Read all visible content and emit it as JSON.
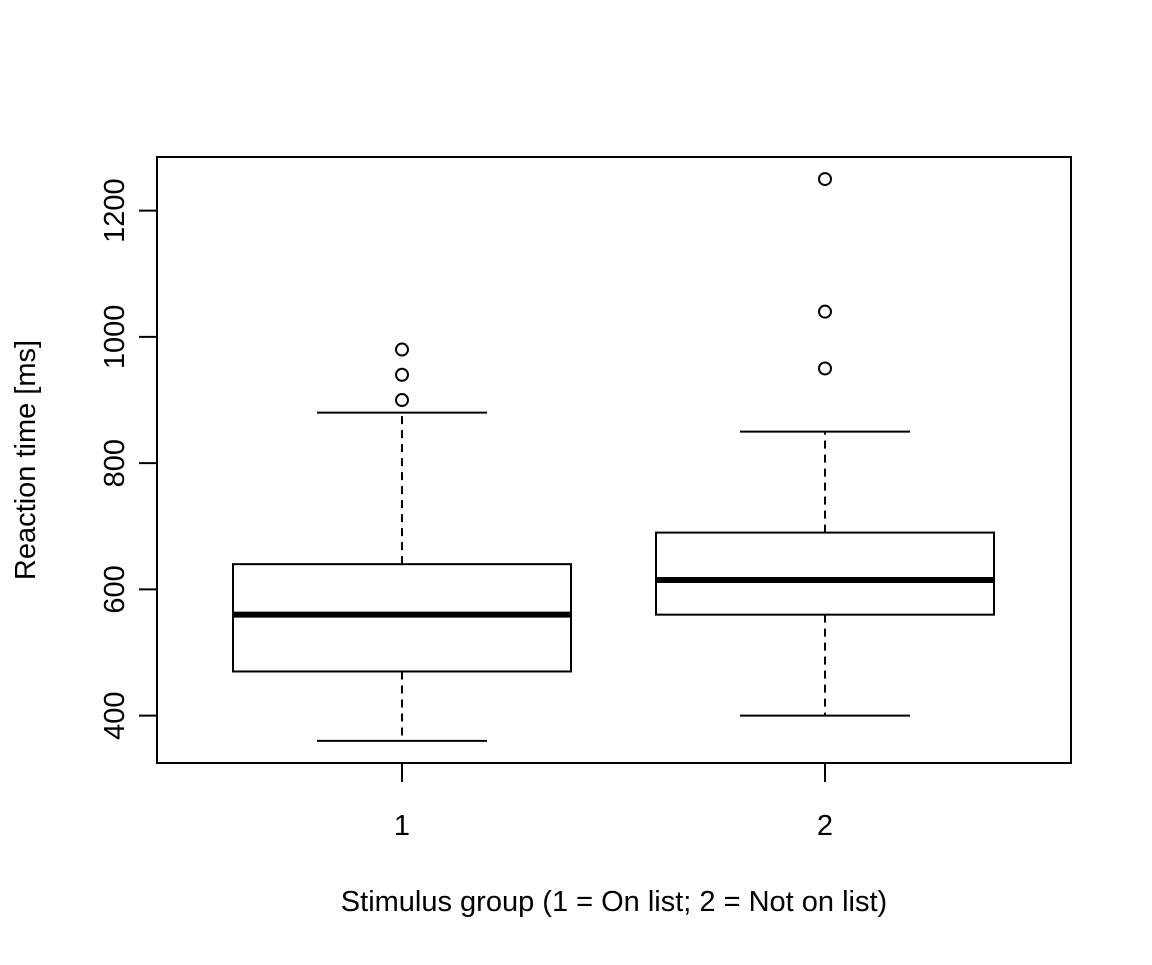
{
  "chart_data": {
    "type": "boxplot",
    "title": "",
    "xlabel": "Stimulus group (1 = On list; 2 = Not on list)",
    "ylabel": "Reaction time [ms]",
    "ylim": [
      325,
      1285
    ],
    "yticks": [
      400,
      600,
      800,
      1000,
      1200
    ],
    "categories": [
      "1",
      "2"
    ],
    "groups": [
      {
        "label": "1",
        "whisker_low": 360,
        "q1": 470,
        "median": 560,
        "q3": 640,
        "whisker_high": 880,
        "outliers": [
          900,
          940,
          980
        ]
      },
      {
        "label": "2",
        "whisker_low": 400,
        "q1": 560,
        "median": 615,
        "q3": 690,
        "whisker_high": 850,
        "outliers": [
          950,
          1040,
          1250
        ]
      }
    ],
    "grid": false,
    "legend": "none",
    "colors": {
      "stroke": "#000000",
      "box_fill": "#ffffff",
      "background": "#ffffff"
    }
  }
}
